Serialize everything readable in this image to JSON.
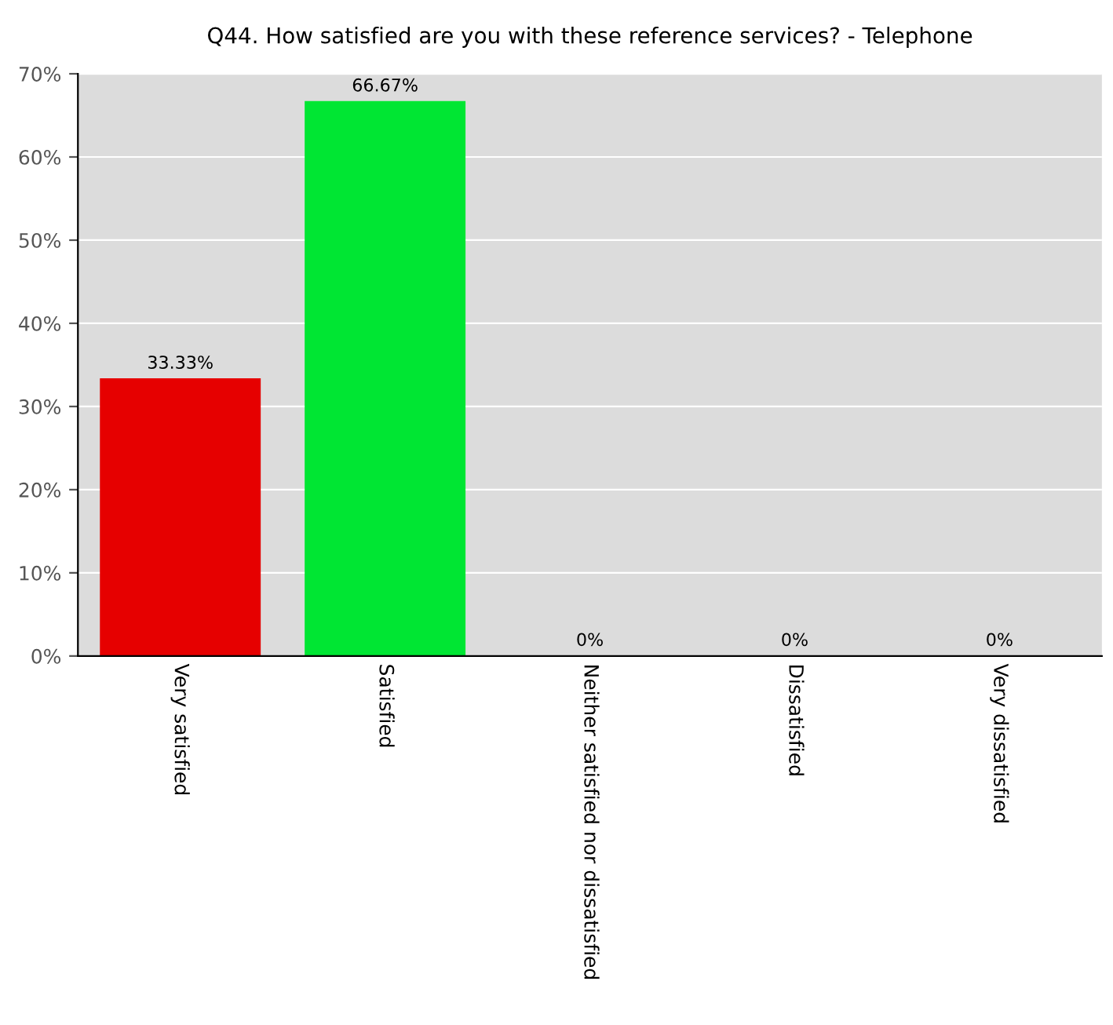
{
  "chart_data": {
    "type": "bar",
    "title": "Q44. How satisfied are you with these reference services? - Telephone",
    "categories": [
      "Very satisfied",
      "Satisfied",
      "Neither satisfied nor dissatisfied",
      "Dissatisfied",
      "Very dissatisfied"
    ],
    "values": [
      33.33,
      66.67,
      0,
      0,
      0
    ],
    "value_labels": [
      "33.33%",
      "66.67%",
      "0%",
      "0%",
      "0%"
    ],
    "colors": [
      "#e60000",
      "#00e633",
      "#999999",
      "#999999",
      "#999999"
    ],
    "ylim": [
      0,
      70
    ],
    "yticks": [
      {
        "value": 0,
        "label": "0%"
      },
      {
        "value": 10,
        "label": "10%"
      },
      {
        "value": 20,
        "label": "20%"
      },
      {
        "value": 30,
        "label": "30%"
      },
      {
        "value": 40,
        "label": "40%"
      },
      {
        "value": 50,
        "label": "50%"
      },
      {
        "value": 60,
        "label": "60%"
      },
      {
        "value": 70,
        "label": "70%"
      }
    ],
    "grid": "y"
  }
}
